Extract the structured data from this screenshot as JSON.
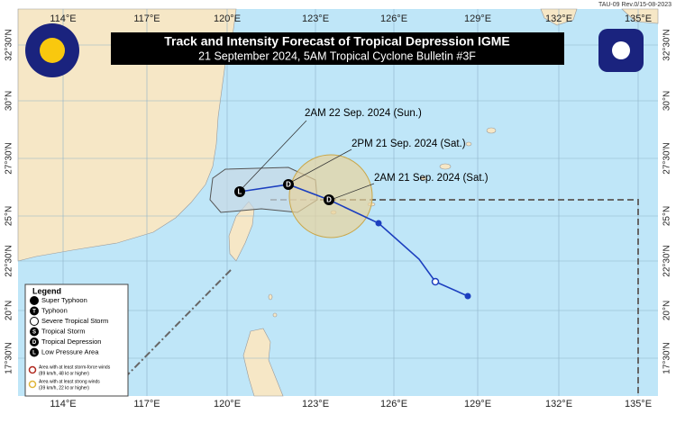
{
  "header": {
    "revision": "TAU-09 Rev.0/15-08-2023",
    "title": "Track and Intensity Forecast of Tropical Depression IGME",
    "subtitle": "21 September 2024, 5AM Tropical Cyclone Bulletin #3F"
  },
  "map": {
    "longitude_labels": [
      "114°E",
      "117°E",
      "120°E",
      "123°E",
      "126°E",
      "129°E",
      "132°E",
      "135°E"
    ],
    "latitude_labels": [
      "32°30'N",
      "30°N",
      "27°30'N",
      "25°N",
      "22°30'N",
      "20°N",
      "17°30'N"
    ]
  },
  "forecast_labels": [
    "2AM 22 Sep. 2024 (Sun.)",
    "2PM 21 Sep. 2024 (Sat.)",
    "2AM 21 Sep. 2024 (Sat.)"
  ],
  "track_symbols": [
    "L",
    "D",
    "D"
  ],
  "legend": {
    "title": "Legend",
    "items": [
      {
        "label": "Super Typhoon"
      },
      {
        "symbol": "T",
        "label": "Typhoon"
      },
      {
        "label": "Severe Tropical Storm"
      },
      {
        "symbol": "S",
        "label": "Tropical Storm"
      },
      {
        "symbol": "D",
        "label": "Tropical Depression"
      },
      {
        "symbol": "L",
        "label": "Low Pressure Area"
      }
    ],
    "wind_areas": [
      {
        "label": "Area with at least storm-force winds",
        "detail": "(89 km/h, 48 kt or higher)"
      },
      {
        "label": "Area with at least strong winds",
        "detail": "(39 km/h, 22 kt or higher)"
      }
    ]
  }
}
